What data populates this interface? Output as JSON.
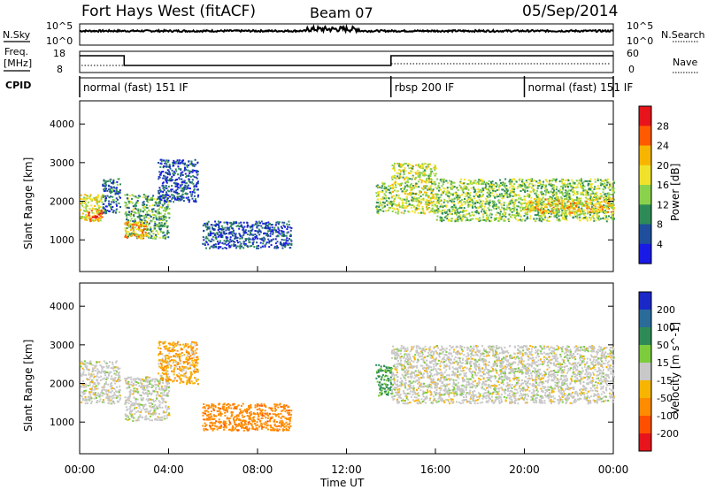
{
  "header": {
    "station": "Fort Hays West (fitACF)",
    "beam": "Beam 07",
    "date": "05/Sep/2014"
  },
  "top_panels": {
    "nsky_label": "N.Sky",
    "nsky_ticks": [
      "10^5",
      "10^0"
    ],
    "nsearch_label": "N.Search",
    "nsearch_ticks": [
      "10^5",
      "10^0"
    ],
    "freq_label_1": "Freq.",
    "freq_label_2": "[MHz]",
    "freq_ticks": [
      "18",
      "8"
    ],
    "nave_label": "Nave",
    "nave_ticks": [
      "60",
      "0"
    ],
    "cpid_label": "CPID",
    "cpid_segments": [
      {
        "label": "normal (fast) 151 IF",
        "start": 0,
        "end": 14
      },
      {
        "label": "rbsp 200 IF",
        "start": 14,
        "end": 20
      },
      {
        "label": "normal (fast) 151 IF",
        "start": 20,
        "end": 24
      }
    ],
    "freq_steps": [
      {
        "start": 0,
        "end": 2,
        "level": "high"
      },
      {
        "start": 2,
        "end": 14,
        "level": "low"
      },
      {
        "start": 14,
        "end": 24,
        "level": "high"
      }
    ]
  },
  "axes": {
    "ylabel": "Slant Range [km]",
    "yticks": [
      "1000",
      "2000",
      "3000",
      "4000"
    ],
    "xlabel": "Time UT",
    "xticks": [
      "00:00",
      "04:00",
      "08:00",
      "12:00",
      "16:00",
      "20:00",
      "00:00"
    ]
  },
  "colorbars": {
    "power": {
      "label": "Power [dB]",
      "ticks": [
        "28",
        "24",
        "20",
        "16",
        "12",
        "8",
        "4"
      ],
      "colors": [
        "#e8141b",
        "#ff5a00",
        "#f7b400",
        "#f0e22a",
        "#8ad24b",
        "#2e8b57",
        "#1f4f9c",
        "#1a1ae6"
      ]
    },
    "velocity": {
      "label": "Velocity [m s^-1]",
      "ticks": [
        "200",
        "100",
        "50",
        "15",
        "-15",
        "-50",
        "-100",
        "-200"
      ],
      "colors": [
        "#1a28c8",
        "#2a6b9a",
        "#2e8b57",
        "#7ccc3c",
        "#c8c8c8",
        "#f7b400",
        "#ff8c00",
        "#ff5000",
        "#e8141b"
      ]
    }
  },
  "chart_data": [
    {
      "type": "heatmap",
      "title": "Power",
      "xlabel": "Time UT",
      "ylabel": "Slant Range [km]",
      "xlim": [
        0,
        24
      ],
      "ylim": [
        180,
        4600
      ],
      "colorbar_label": "Power [dB]",
      "colorbar_range": [
        0,
        32
      ],
      "regions": [
        {
          "start_hr": 0.0,
          "end_hr": 1.0,
          "range_lo_km": 1500,
          "range_hi_km": 2200,
          "value_db": 20
        },
        {
          "start_hr": 0.3,
          "end_hr": 1.0,
          "range_lo_km": 1500,
          "range_hi_km": 1800,
          "value_db": 28
        },
        {
          "start_hr": 1.0,
          "end_hr": 1.8,
          "range_lo_km": 1700,
          "range_hi_km": 2600,
          "value_db": 10
        },
        {
          "start_hr": 2.0,
          "end_hr": 4.0,
          "range_lo_km": 1050,
          "range_hi_km": 2200,
          "value_db": 14
        },
        {
          "start_hr": 2.0,
          "end_hr": 3.0,
          "range_lo_km": 1050,
          "range_hi_km": 1500,
          "value_db": 24
        },
        {
          "start_hr": 3.5,
          "end_hr": 5.3,
          "range_lo_km": 2000,
          "range_hi_km": 3100,
          "value_db": 8
        },
        {
          "start_hr": 5.5,
          "end_hr": 9.5,
          "range_lo_km": 800,
          "range_hi_km": 1500,
          "value_db": 8
        },
        {
          "start_hr": 13.3,
          "end_hr": 14.0,
          "range_lo_km": 1700,
          "range_hi_km": 2500,
          "value_db": 16
        },
        {
          "start_hr": 14.0,
          "end_hr": 16.0,
          "range_lo_km": 1700,
          "range_hi_km": 3000,
          "value_db": 18
        },
        {
          "start_hr": 16.0,
          "end_hr": 24.0,
          "range_lo_km": 1500,
          "range_hi_km": 2600,
          "value_db": 16
        },
        {
          "start_hr": 20.0,
          "end_hr": 24.0,
          "range_lo_km": 1700,
          "range_hi_km": 2100,
          "value_db": 22
        }
      ]
    },
    {
      "type": "heatmap",
      "title": "Velocity",
      "xlabel": "Time UT",
      "ylabel": "Slant Range [km]",
      "xlim": [
        0,
        24
      ],
      "ylim": [
        180,
        4600
      ],
      "colorbar_label": "Velocity [m s^-1]",
      "colorbar_range": [
        -200,
        200
      ],
      "regions": [
        {
          "start_hr": 0.0,
          "end_hr": 1.8,
          "range_lo_km": 1500,
          "range_hi_km": 2600,
          "value_ms": 0
        },
        {
          "start_hr": 2.0,
          "end_hr": 4.0,
          "range_lo_km": 1050,
          "range_hi_km": 2200,
          "value_ms": 0
        },
        {
          "start_hr": 3.5,
          "end_hr": 5.3,
          "range_lo_km": 2000,
          "range_hi_km": 3100,
          "value_ms": -30
        },
        {
          "start_hr": 5.5,
          "end_hr": 9.5,
          "range_lo_km": 800,
          "range_hi_km": 1500,
          "value_ms": -60
        },
        {
          "start_hr": 13.3,
          "end_hr": 14.0,
          "range_lo_km": 1700,
          "range_hi_km": 2500,
          "value_ms": 40
        },
        {
          "start_hr": 14.0,
          "end_hr": 24.0,
          "range_lo_km": 1500,
          "range_hi_km": 3000,
          "value_ms": 0
        }
      ]
    }
  ]
}
